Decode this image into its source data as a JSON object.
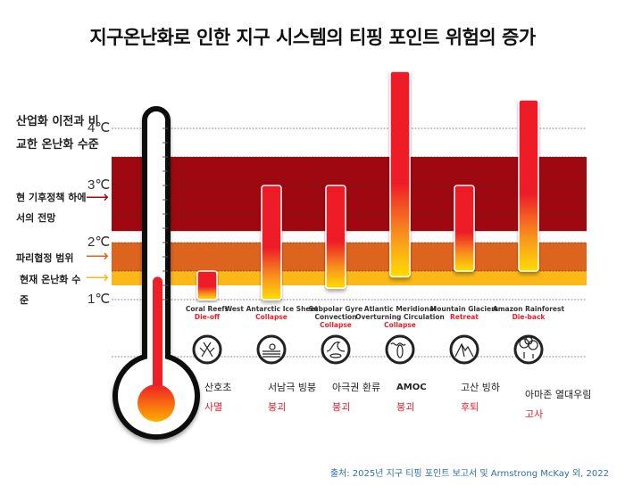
{
  "title": "지구온난화로 인한 지구 시스템의 티핑 포인트 위험의 증가",
  "y_axis_label": "산업화 이전과 비교한 온난화 수준",
  "ticks": [
    "1℃",
    "2℃",
    "3℃",
    "4℃"
  ],
  "band_labels": {
    "current_policy": "현 기후정책 하에서의 전망",
    "paris": "파리협정 범위",
    "current": "현재 온난화 수준"
  },
  "colors": {
    "current_policy": "#9e0810",
    "paris": "#dc641e",
    "current": "#fbb817",
    "bar_top": "#ee1f27",
    "bar_bottom": "#ffdd00",
    "status": "#e8202a",
    "source": "#2d6fb0"
  },
  "source": "출처: 2025년 지구 티핑 포인트 보고서 및 Armstrong McKay 외, 2022",
  "chart_data": {
    "type": "bar",
    "ylim": [
      1,
      5
    ],
    "grid": true,
    "bands": [
      {
        "key": "current_policy",
        "from": 2.2,
        "to": 3.5
      },
      {
        "key": "paris",
        "from": 1.5,
        "to": 2.0
      },
      {
        "key": "current",
        "from": 1.25,
        "to": 1.5
      }
    ],
    "current_warming": 1.4,
    "categories": [
      {
        "en": "Coral Reefs",
        "en_status": "Die-off",
        "ko": "산호초",
        "ko_status": "사멸",
        "icon": "coral-icon",
        "low": 1.0,
        "high": 1.5
      },
      {
        "en": "West Antarctic Ice Sheet",
        "en_status": "Collapse",
        "ko": "서남극 빙붕",
        "ko_status": "붕괴",
        "icon": "ice-sheet-icon",
        "low": 1.0,
        "high": 3.0
      },
      {
        "en": "Subpolar Gyre Convection",
        "en_status": "Collapse",
        "ko": "아극권 환류",
        "ko_status": "붕괴",
        "icon": "wave-icon",
        "low": 1.2,
        "high": 3.0
      },
      {
        "en": "Atlantic Meridional Overturning Circulation",
        "en_status": "Collapse",
        "ko": "AMOC",
        "ko_status": "붕괴",
        "icon": "ocean-current-icon",
        "low": 1.4,
        "high": 5.0
      },
      {
        "en": "Mountain Glaciers",
        "en_status": "Retreat",
        "ko": "고산 빙하",
        "ko_status": "후퇴",
        "icon": "mountain-icon",
        "low": 1.5,
        "high": 3.0
      },
      {
        "en": "Amazon Rainforest",
        "en_status": "Die-back",
        "ko": "아마존 열대우림",
        "ko_status": "고사",
        "icon": "forest-icon",
        "low": 1.5,
        "high": 4.5
      }
    ]
  }
}
